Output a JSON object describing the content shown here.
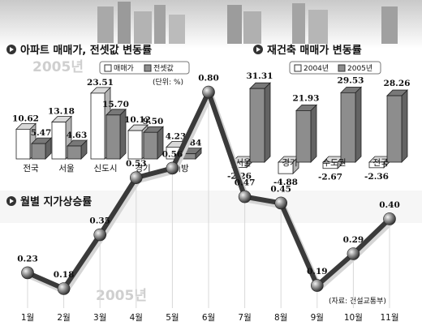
{
  "chart_data": [
    {
      "type": "bar",
      "title": "아파트 매매가, 전셋값 변동률",
      "subtitle": "2005년",
      "unit": "(단위: %)",
      "categories": [
        "전국",
        "서울",
        "신도시",
        "경기",
        "지방"
      ],
      "series": [
        {
          "name": "매매가",
          "values": [
            10.62,
            13.18,
            23.51,
            10.12,
            4.23
          ]
        },
        {
          "name": "전셋값",
          "values": [
            5.47,
            4.63,
            15.7,
            9.5,
            1.84
          ]
        }
      ],
      "legend": "top-right"
    },
    {
      "type": "bar",
      "title": "재건축 매매가 변동률",
      "categories": [
        "서울",
        "경기",
        "수도권",
        "전국"
      ],
      "series": [
        {
          "name": "2004년",
          "values": [
            -2.26,
            -4.88,
            -2.67,
            -2.36
          ]
        },
        {
          "name": "2005년",
          "values": [
            31.31,
            21.93,
            29.53,
            28.26
          ]
        }
      ],
      "legend": "top-right"
    },
    {
      "type": "line",
      "title": "월별 지가상승률",
      "watermark": "2005년",
      "source": "(자료: 건설교통부)",
      "categories": [
        "1월",
        "2월",
        "3월",
        "4월",
        "5월",
        "6월",
        "7월",
        "8월",
        "9월",
        "10월",
        "11월"
      ],
      "values": [
        0.23,
        0.18,
        0.35,
        0.53,
        0.56,
        0.8,
        0.47,
        0.45,
        0.19,
        0.29,
        0.4
      ]
    }
  ]
}
